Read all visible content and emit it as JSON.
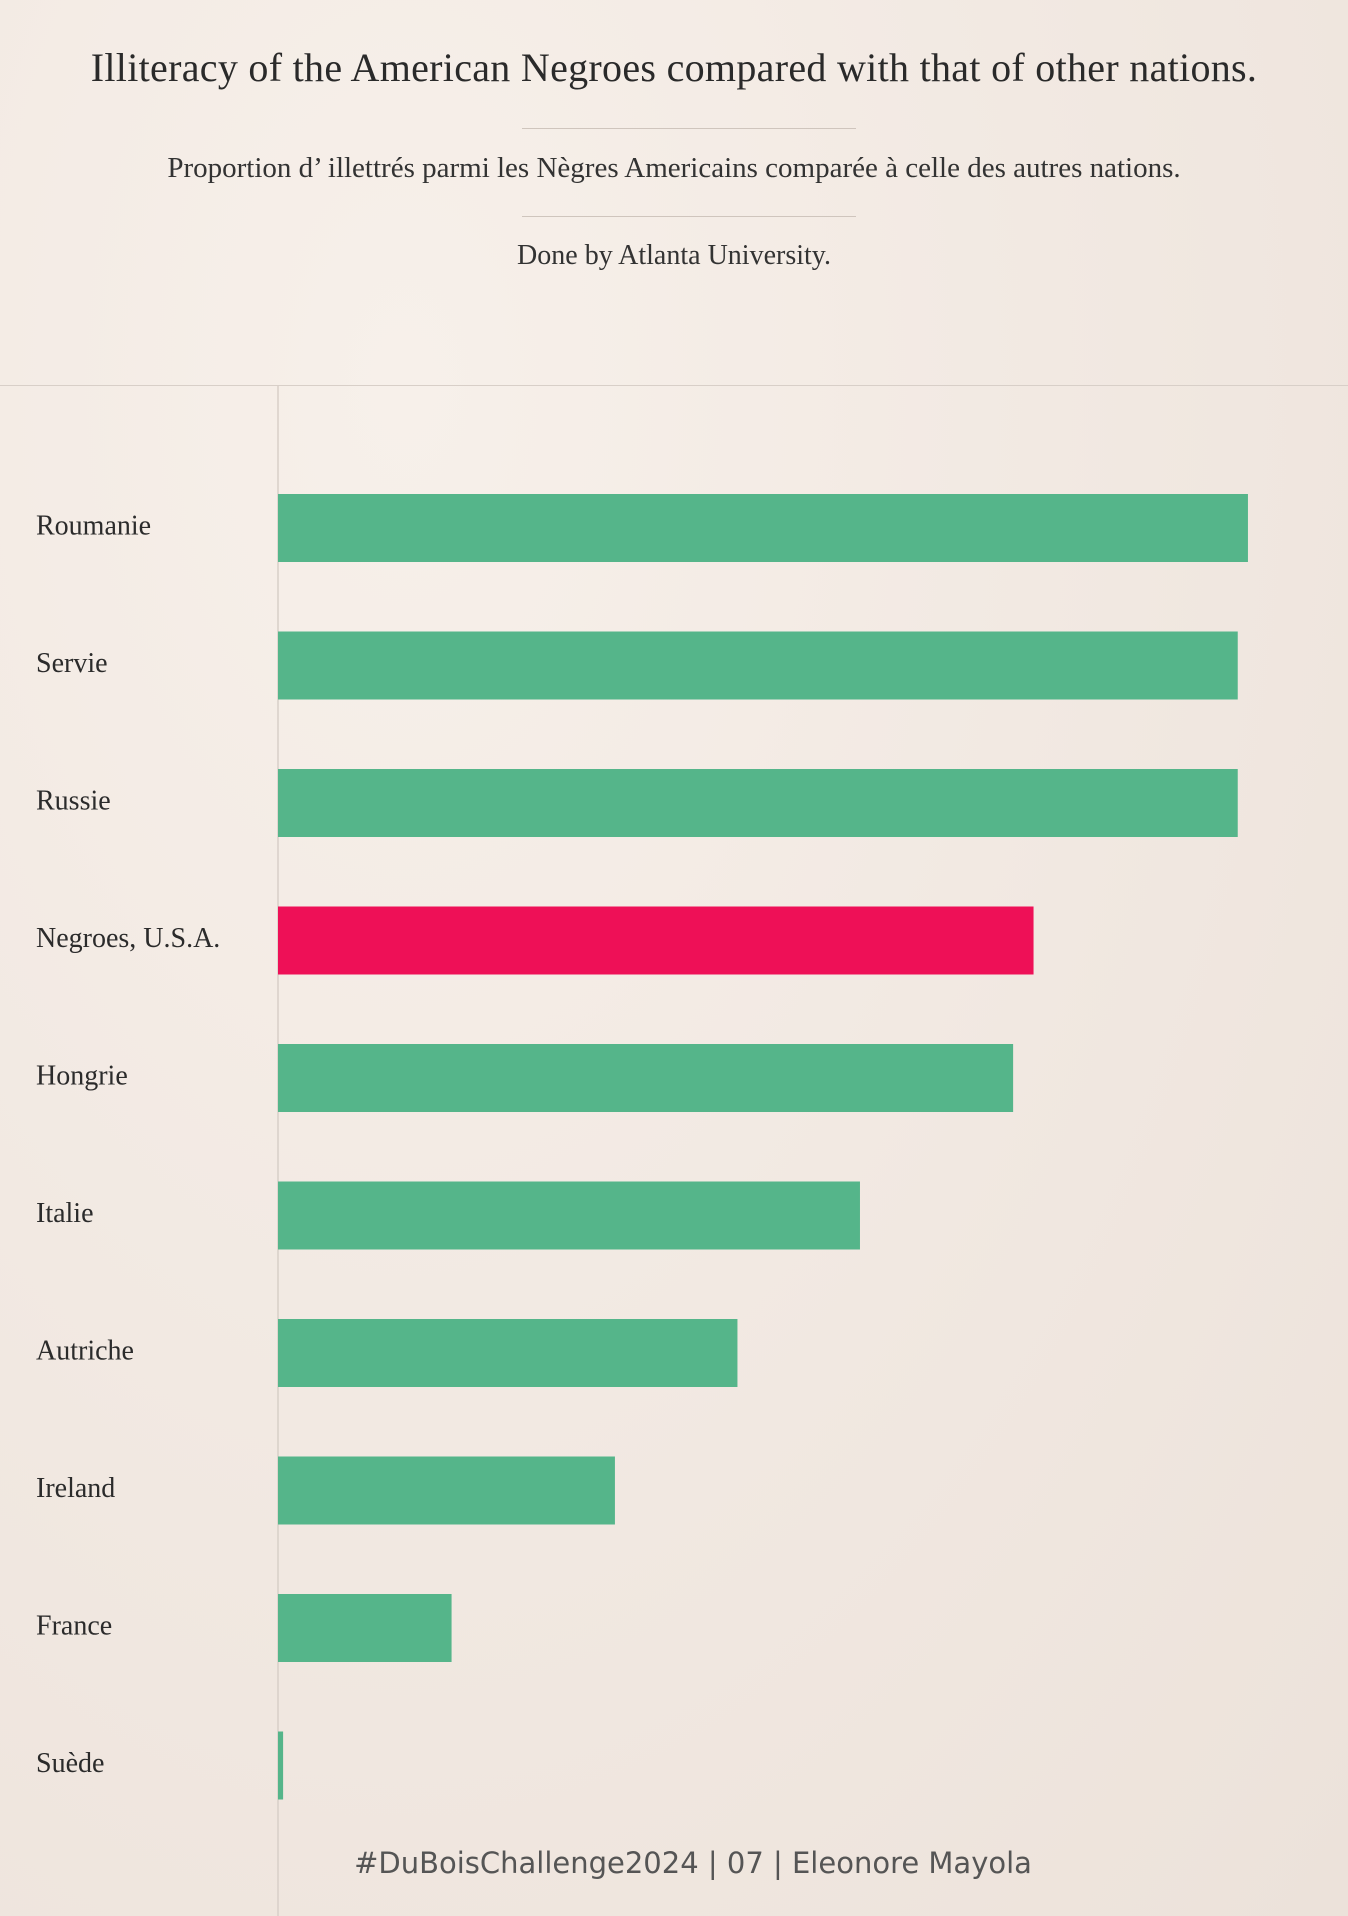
{
  "header": {
    "title": "Illiteracy of the American Negroes compared with that of other nations.",
    "subtitle": "Proportion d’ illettrés parmi les Nègres Americains comparée à celle des autres nations.",
    "credit": "Done by Atlanta University."
  },
  "footer": {
    "text": "#DuBoisChallenge2024 | 07 | Eleonore Mayola"
  },
  "colors": {
    "bar": "#55b58a",
    "highlight": "#ee1057",
    "axis": "#d8cfc8"
  },
  "chart_data": {
    "type": "bar",
    "orientation": "horizontal",
    "categories": [
      "Roumanie",
      "Servie",
      "Russie",
      "Negroes, U.S.A.",
      "Hongrie",
      "Italie",
      "Autriche",
      "Ireland",
      "France",
      "Suède"
    ],
    "values": [
      95,
      94,
      94,
      74,
      72,
      57,
      45,
      33,
      17,
      0.5
    ],
    "highlight_category": "Negroes, U.S.A.",
    "xlim": [
      0,
      100
    ],
    "grid": false,
    "legend": "none"
  }
}
